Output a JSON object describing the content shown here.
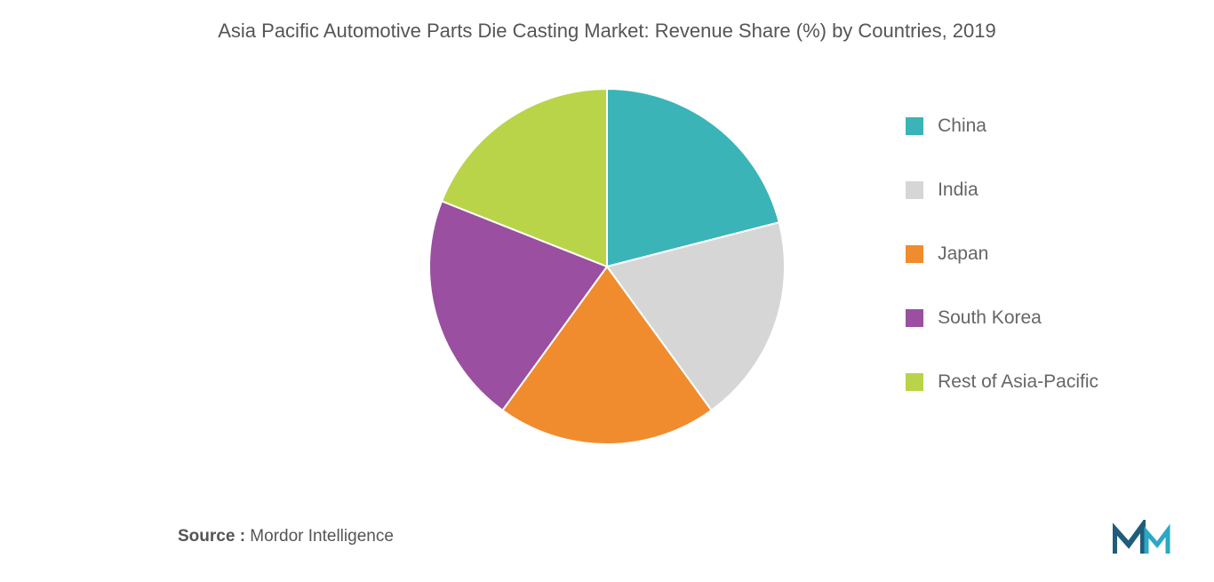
{
  "title": "Asia Pacific Automotive Parts Die Casting Market: Revenue Share (%) by Countries, 2019",
  "chart": {
    "type": "pie",
    "background_color": "#ffffff",
    "radius": 200,
    "start_angle": 0,
    "slices": [
      {
        "label": "China",
        "value": 21,
        "color": "#3bb4b8"
      },
      {
        "label": "India",
        "value": 19,
        "color": "#d6d6d6"
      },
      {
        "label": "Japan",
        "value": 20,
        "color": "#f08c2e"
      },
      {
        "label": "South Korea",
        "value": 21,
        "color": "#9a4fa0"
      },
      {
        "label": "Rest of Asia-Pacific",
        "value": 19,
        "color": "#b9d449"
      }
    ],
    "gap_color": "#ffffff",
    "gap_width": 2
  },
  "legend": {
    "position": "right",
    "swatch_size": 20,
    "label_fontsize": 21,
    "label_color": "#666666",
    "items": [
      {
        "label": "China",
        "color": "#3bb4b8"
      },
      {
        "label": "India",
        "color": "#d6d6d6"
      },
      {
        "label": "Japan",
        "color": "#f08c2e"
      },
      {
        "label": "South Korea",
        "color": "#9a4fa0"
      },
      {
        "label": "Rest of Asia-Pacific",
        "color": "#b9d449"
      }
    ]
  },
  "source": {
    "prefix": "Source :",
    "text": " Mordor Intelligence",
    "fontsize": 19,
    "color": "#555555"
  },
  "logo": {
    "primary_color": "#1f5d7a",
    "accent_color": "#2aa8c4"
  },
  "title_style": {
    "fontsize": 22,
    "color": "#555555",
    "weight": 500
  }
}
